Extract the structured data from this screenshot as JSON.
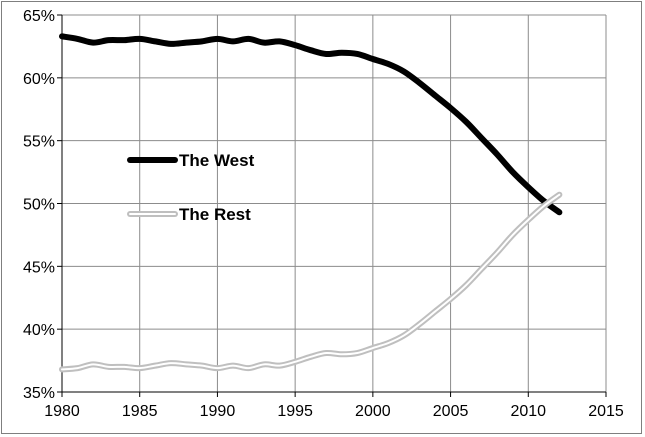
{
  "chart_data": {
    "type": "line",
    "title": "",
    "xlabel": "",
    "ylabel": "",
    "xlim": [
      1980,
      2015
    ],
    "ylim": [
      35,
      65
    ],
    "x_ticks": [
      "1980",
      "1985",
      "1990",
      "1995",
      "2000",
      "2005",
      "2010",
      "2015"
    ],
    "y_ticks": [
      "35%",
      "40%",
      "45%",
      "50%",
      "55%",
      "60%",
      "65%"
    ],
    "grid": true,
    "legend_position": "center-left",
    "x": [
      1980,
      1981,
      1982,
      1983,
      1984,
      1985,
      1986,
      1987,
      1988,
      1989,
      1990,
      1991,
      1992,
      1993,
      1994,
      1995,
      1996,
      1997,
      1998,
      1999,
      2000,
      2001,
      2002,
      2003,
      2004,
      2005,
      2006,
      2007,
      2008,
      2009,
      2010,
      2011,
      2012
    ],
    "series": [
      {
        "name": "The West",
        "color": "#000000",
        "style": "thick-solid",
        "values": [
          63.3,
          63.1,
          62.8,
          63.0,
          63.0,
          63.1,
          62.9,
          62.7,
          62.8,
          62.9,
          63.1,
          62.9,
          63.1,
          62.8,
          62.9,
          62.6,
          62.2,
          61.9,
          62.0,
          61.9,
          61.5,
          61.1,
          60.5,
          59.6,
          58.6,
          57.6,
          56.5,
          55.2,
          53.9,
          52.5,
          51.3,
          50.2,
          49.3
        ]
      },
      {
        "name": "The Rest",
        "color": "#bfbfbf",
        "style": "double-line",
        "values": [
          36.8,
          36.9,
          37.2,
          37.0,
          37.0,
          36.9,
          37.1,
          37.3,
          37.2,
          37.1,
          36.9,
          37.1,
          36.9,
          37.2,
          37.1,
          37.4,
          37.8,
          38.1,
          38.0,
          38.1,
          38.5,
          38.9,
          39.5,
          40.4,
          41.4,
          42.4,
          43.5,
          44.8,
          46.1,
          47.5,
          48.7,
          49.8,
          50.7
        ]
      }
    ]
  }
}
